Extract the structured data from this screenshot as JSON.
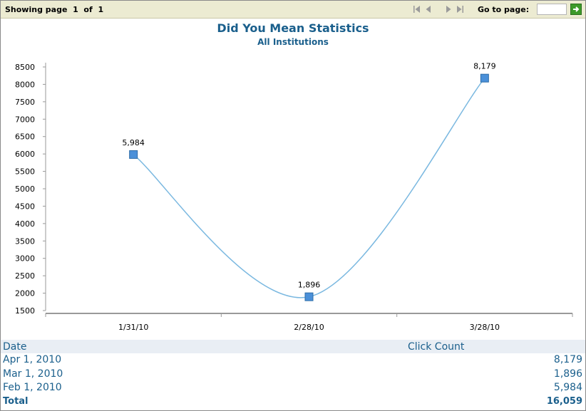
{
  "pager": {
    "showing_prefix": "Showing page",
    "page_current": "1",
    "of_text": "of",
    "page_total": "1",
    "goto_label": "Go to page:",
    "goto_value": ""
  },
  "chart_data": {
    "type": "line",
    "title": "Did You Mean Statistics",
    "subtitle": "All Institutions",
    "categories": [
      "1/31/10",
      "2/28/10",
      "3/28/10"
    ],
    "series": [
      {
        "values": [
          5984,
          1896,
          8179
        ],
        "labels": [
          "5,984",
          "1,896",
          "8,179"
        ]
      }
    ],
    "ylim": [
      1500,
      8500
    ],
    "yticks": [
      1500,
      2000,
      2500,
      3000,
      3500,
      4000,
      4500,
      5000,
      5500,
      6000,
      6500,
      7000,
      7500,
      8000,
      8500
    ],
    "line_color": "#7ab8e0",
    "marker_color": "#4a90d9",
    "grid": false,
    "legend": "none"
  },
  "table": {
    "headers": {
      "date": "Date",
      "count": "Click Count"
    },
    "rows": [
      {
        "date": "Apr 1, 2010",
        "count": "8,179"
      },
      {
        "date": "Mar 1, 2010",
        "count": "1,896"
      },
      {
        "date": "Feb 1, 2010",
        "count": "5,984"
      }
    ],
    "total_label": "Total",
    "total_value": "16,059"
  },
  "colors": {
    "pager_bg": "#ecebd2",
    "title": "#1a5f8c",
    "table_header_bg": "#e9eef4",
    "go_button": "#3d9a2a"
  }
}
